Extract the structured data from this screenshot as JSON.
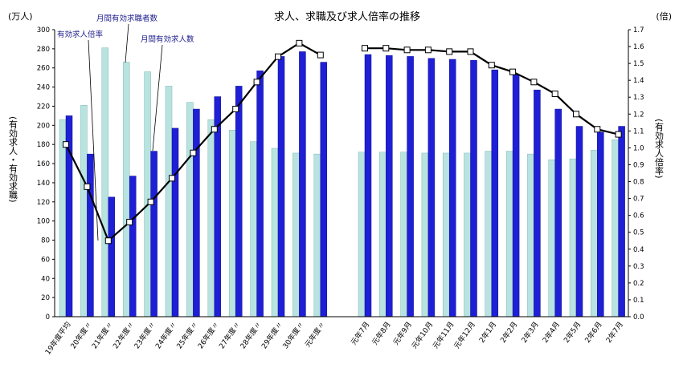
{
  "chart_data": {
    "type": "bar",
    "title": "求人、求職及び求人倍率の推移",
    "left_unit": "(万人)",
    "right_unit": "(倍)",
    "ylabel_left": "(有効求人・有効求職)",
    "ylabel_right": "(有効求人倍率)",
    "ylim_left": [
      0,
      300
    ],
    "ylim_right": [
      0,
      1.7
    ],
    "left_ticks": [
      0,
      20,
      40,
      60,
      80,
      100,
      120,
      140,
      160,
      180,
      200,
      220,
      240,
      260,
      280,
      300
    ],
    "right_ticks": [
      "0.0",
      "0.1",
      "0.2",
      "0.3",
      "0.4",
      "0.5",
      "0.6",
      "0.7",
      "0.8",
      "0.9",
      "1.0",
      "1.1",
      "1.2",
      "1.3",
      "1.4",
      "1.5",
      "1.6",
      "1.7"
    ],
    "grid": false,
    "categories": [
      "19年度平均",
      "20年度〃",
      "21年度〃",
      "22年度〃",
      "23年度〃",
      "24年度〃",
      "25年度〃",
      "26年度〃",
      "27年度〃",
      "28年度〃",
      "29年度〃",
      "30年度〃",
      "元年度〃",
      "元年7月",
      "元年8月",
      "元年9月",
      "元年10月",
      "元年11月",
      "元年12月",
      "2年1月",
      "2年2月",
      "2年3月",
      "2年4月",
      "2年5月",
      "2年6月",
      "2年7月"
    ],
    "series": [
      {
        "name": "月間有効求職者数",
        "role": "seekers",
        "type": "bar",
        "color": "#b8e3e0",
        "values": [
          206,
          221,
          281,
          266,
          256,
          241,
          224,
          206,
          195,
          183,
          176,
          171,
          170,
          172,
          172,
          172,
          171,
          171,
          171,
          173,
          173,
          170,
          164,
          165,
          174,
          185
        ]
      },
      {
        "name": "月間有効求人数",
        "role": "openings",
        "type": "bar",
        "color": "#1f1fd6",
        "values": [
          210,
          170,
          125,
          147,
          173,
          197,
          217,
          230,
          241,
          257,
          272,
          277,
          266,
          274,
          273,
          272,
          270,
          269,
          268,
          258,
          253,
          237,
          217,
          199,
          193,
          199
        ]
      },
      {
        "name": "有効求人倍率",
        "role": "ratio",
        "type": "line",
        "color": "#000000",
        "values": [
          1.02,
          0.77,
          0.45,
          0.56,
          0.68,
          0.82,
          0.97,
          1.11,
          1.23,
          1.39,
          1.54,
          1.62,
          1.55,
          1.59,
          1.59,
          1.58,
          1.58,
          1.57,
          1.57,
          1.49,
          1.45,
          1.39,
          1.32,
          1.2,
          1.11,
          1.08
        ]
      }
    ]
  }
}
